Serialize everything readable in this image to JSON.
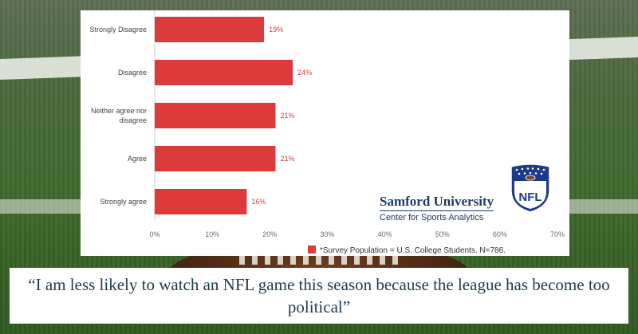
{
  "chart_data": {
    "type": "bar",
    "orientation": "horizontal",
    "categories": [
      "Strongly Disagree",
      "Disagree",
      "Neither agree nor disagree",
      "Agree",
      "Strongly agree"
    ],
    "category_lines": [
      [
        "Strongly Disagree"
      ],
      [
        "Disagree"
      ],
      [
        "Neither agree nor",
        "disagree"
      ],
      [
        "Agree"
      ],
      [
        "Strongly agree"
      ]
    ],
    "values": [
      19,
      24,
      21,
      21,
      16
    ],
    "value_labels": [
      "19%",
      "24%",
      "21%",
      "21%",
      "16%"
    ],
    "xlim": [
      0,
      70
    ],
    "x_ticks": [
      0,
      10,
      20,
      30,
      40,
      50,
      60,
      70
    ],
    "x_tick_labels": [
      "0%",
      "10%",
      "20%",
      "30%",
      "40%",
      "50%",
      "60%",
      "70%"
    ],
    "bar_color": "#dd3b3b",
    "value_label_color": "#d24040",
    "legend": {
      "label": "*Survey Population = U.S. College Students. N=786.",
      "placement": "bottom-right"
    },
    "grid": false
  },
  "branding": {
    "org_name": "Samford University",
    "org_sub": "Center for Sports Analytics",
    "logo_text": "NFL",
    "brand_color": "#1c3a6e"
  },
  "quote": "“I am less likely to watch an NFL game this season because the league has become too political”"
}
